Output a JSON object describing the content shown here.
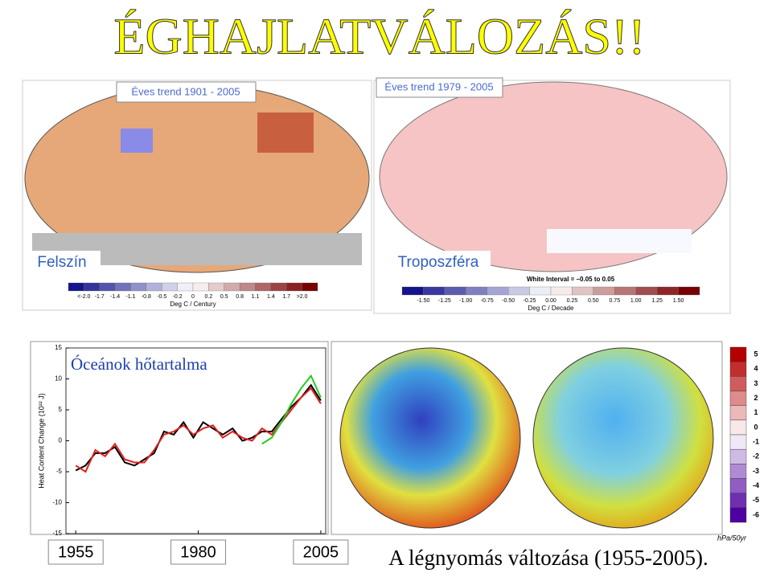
{
  "title": "ÉGHAJLATVÁLOZÁS!!",
  "surface_map": {
    "period": "Éves trend 1901 - 2005",
    "label": "Felszín",
    "colorbar": {
      "labels": [
        "<-2.0",
        "-1.7",
        "-1.4",
        "-1.1",
        "-0.8",
        "-0.5",
        "-0.2",
        "0",
        "0.2",
        "0.5",
        "0.8",
        "1.1",
        "1.4",
        "1.7",
        ">2.0"
      ],
      "unit": "Deg C / Century"
    }
  },
  "troposphere_map": {
    "period": "Éves trend 1979 - 2005",
    "label": "Troposzféra",
    "note": "White Interval = –0.05 to 0.05",
    "colorbar": {
      "labels": [
        "-1.50",
        "-1.25",
        "-1.00",
        "-0.75",
        "-0.50",
        "-0.25",
        "0.00",
        "0.25",
        "0.50",
        "0.75",
        "1.00",
        "1.25",
        "1.50"
      ],
      "unit": "Deg C / Decade"
    }
  },
  "chart_data": {
    "type": "line",
    "title": "Óceánok hőtartalma",
    "y_label": "Heat Content Change (10²² J)",
    "x": [
      1955,
      1957,
      1959,
      1961,
      1963,
      1965,
      1967,
      1969,
      1971,
      1973,
      1975,
      1977,
      1979,
      1981,
      1983,
      1985,
      1987,
      1989,
      1991,
      1993,
      1995,
      1997,
      1999,
      2001,
      2003,
      2005
    ],
    "series": [
      {
        "color": "#000000",
        "values": [
          -4.8,
          -4,
          -2,
          -2,
          -1,
          -3.5,
          -4,
          -3,
          -2,
          1.5,
          1,
          3,
          0.5,
          3,
          2,
          1,
          2,
          0,
          0.5,
          1.5,
          1.5,
          3.5,
          5.5,
          7,
          9,
          6.5
        ]
      },
      {
        "color": "#e02020",
        "values": [
          -4,
          -5,
          -1.5,
          -2.5,
          -0.5,
          -3,
          -3.5,
          -3.5,
          -1.5,
          1,
          1.5,
          2.5,
          1,
          2,
          2.5,
          0.5,
          1.5,
          0.5,
          0,
          2,
          1,
          3,
          5,
          7,
          8.5,
          6
        ]
      },
      {
        "color": "#22cc22",
        "values": [
          null,
          null,
          null,
          null,
          null,
          null,
          null,
          null,
          null,
          null,
          null,
          null,
          null,
          null,
          null,
          null,
          null,
          null,
          null,
          -0.5,
          0.5,
          3,
          6,
          8.5,
          10.5,
          7
        ]
      }
    ],
    "xlim": [
      1953,
      2006
    ],
    "xticks": [
      1955,
      1980,
      2005
    ],
    "ylim": [
      -15,
      15
    ],
    "yticks": [
      -15,
      -10,
      -5,
      0,
      5,
      10,
      15
    ]
  },
  "pressure_maps": {
    "colorbar": {
      "ticks": [
        5,
        4,
        3,
        2,
        1,
        0,
        -1,
        -2,
        -3,
        -4,
        -5,
        -6
      ],
      "unit": "hPa/50yr"
    },
    "caption": "A légnyomás változása (1955-2005)."
  }
}
